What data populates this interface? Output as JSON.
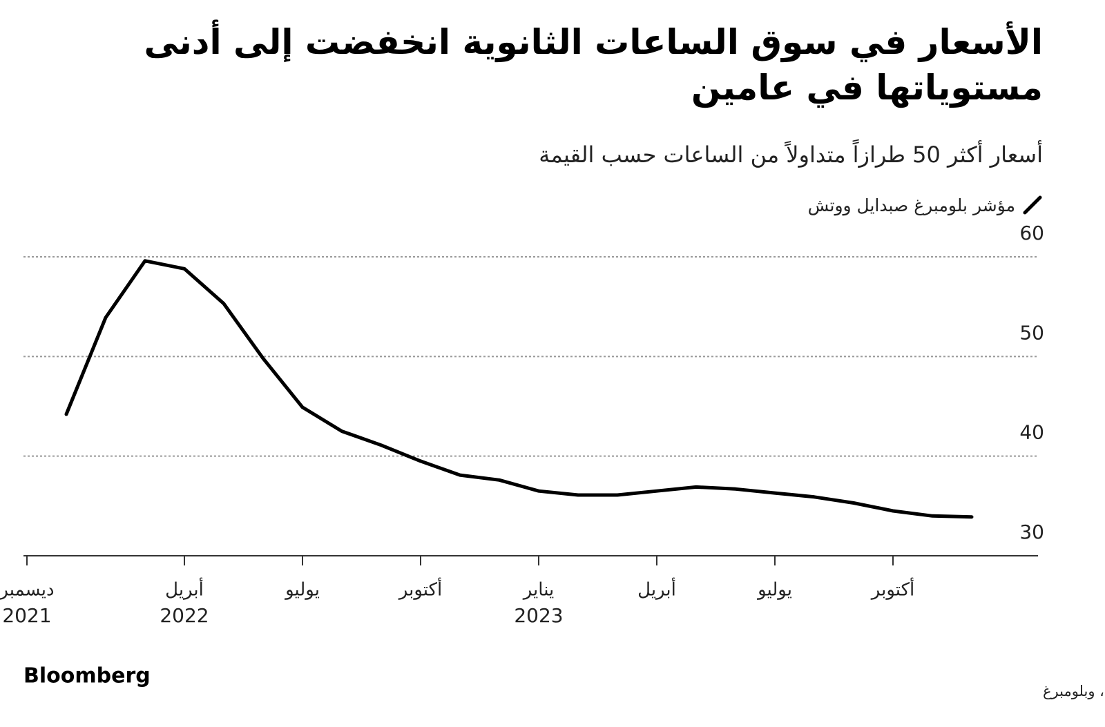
{
  "chart_data": {
    "type": "line",
    "title": "الأسعار في سوق الساعات الثانوية انخفضت إلى أدنى مستوياتها في عامين",
    "subtitle": "أسعار أكثر 50 طرازاً متداولاً من الساعات حسب القيمة",
    "source": "المصدر: صبدايل، وبلومبرغ",
    "logo": "Bloomberg",
    "x": [
      "2022-01",
      "2022-02",
      "2022-03",
      "2022-04",
      "2022-05",
      "2022-06",
      "2022-07",
      "2022-08",
      "2022-09",
      "2022-10",
      "2022-11",
      "2022-12",
      "2023-01",
      "2023-02",
      "2023-03",
      "2023-04",
      "2023-05",
      "2023-06",
      "2023-07",
      "2023-08",
      "2023-09",
      "2023-10",
      "2023-11",
      "2023-12"
    ],
    "series": [
      {
        "name": "مؤشر بلومبرغ صبدايل ووتش",
        "color": "#000000",
        "values": [
          44.2,
          53.9,
          59.6,
          58.8,
          55.3,
          49.8,
          44.9,
          42.5,
          41.1,
          39.5,
          38.1,
          37.6,
          36.5,
          36.1,
          36.1,
          36.5,
          36.9,
          36.7,
          36.3,
          35.9,
          35.3,
          34.5,
          34.0,
          33.9
        ]
      }
    ],
    "xlim": [
      "2021-12",
      "2024-01"
    ],
    "xticks": [
      {
        "value": "2021-12",
        "label": "ديسمبر"
      },
      {
        "value": "2022-04",
        "label": "أبريل"
      },
      {
        "value": "2022-07",
        "label": "يوليو"
      },
      {
        "value": "2022-10",
        "label": "أكتوبر"
      },
      {
        "value": "2023-01",
        "label": "يناير"
      },
      {
        "value": "2023-04",
        "label": "أبريل"
      },
      {
        "value": "2023-07",
        "label": "يوليو"
      },
      {
        "value": "2023-10",
        "label": "أكتوبر"
      }
    ],
    "xtick_years": [
      {
        "value": "2021-12",
        "label": "2021"
      },
      {
        "value": "2022-04",
        "label": "2022"
      },
      {
        "value": "2023-01",
        "label": "2023"
      }
    ],
    "ylim": [
      30,
      60
    ],
    "yticks": [
      30,
      40,
      50,
      60
    ],
    "grid": true
  }
}
